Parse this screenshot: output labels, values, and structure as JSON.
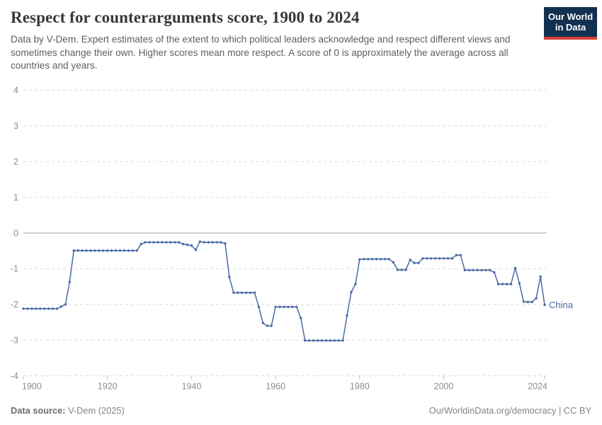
{
  "header": {
    "title": "Respect for counterarguments score, 1900 to 2024",
    "subtitle": "Data by V-Dem. Expert estimates of the extent to which political leaders acknowledge and respect different views and sometimes change their own. Higher scores mean more respect. A score of 0 is approximately the average across all countries and years."
  },
  "logo": {
    "line1": "Our World",
    "line2": "in Data",
    "bg_color": "#12304f",
    "bar_color": "#d8423c"
  },
  "footer": {
    "source_label": "Data source:",
    "source_value": " V-Dem (2025)",
    "right_text": "OurWorldinData.org/democracy | CC BY"
  },
  "chart_data": {
    "type": "line",
    "title": "Respect for counterarguments score, 1900 to 2024",
    "xlabel": "",
    "ylabel": "",
    "xlim": [
      1900,
      2024
    ],
    "ylim": [
      -4,
      4
    ],
    "grid": "dashed-horizontal",
    "legend_position": "end-of-line-label",
    "entity_label": "China",
    "line_color": "#4b6aa5",
    "axis_text_color": "#8d8d8d",
    "gridline_color": "#dcdcdc",
    "zero_line_color": "#a3a3a3",
    "yticks": [
      4,
      3,
      2,
      1,
      0,
      -1,
      -2,
      -3,
      -4
    ],
    "xticks": [
      1900,
      1920,
      1940,
      1960,
      1980,
      2000,
      2024
    ],
    "x": [
      1900,
      1901,
      1902,
      1903,
      1904,
      1905,
      1906,
      1907,
      1908,
      1909,
      1910,
      1911,
      1912,
      1913,
      1914,
      1915,
      1916,
      1917,
      1918,
      1919,
      1920,
      1921,
      1922,
      1923,
      1924,
      1925,
      1926,
      1927,
      1928,
      1929,
      1930,
      1931,
      1932,
      1933,
      1934,
      1935,
      1936,
      1937,
      1938,
      1939,
      1940,
      1941,
      1942,
      1943,
      1944,
      1945,
      1946,
      1947,
      1948,
      1949,
      1950,
      1951,
      1952,
      1953,
      1954,
      1955,
      1956,
      1957,
      1958,
      1959,
      1960,
      1961,
      1962,
      1963,
      1964,
      1965,
      1966,
      1967,
      1968,
      1969,
      1970,
      1971,
      1972,
      1973,
      1974,
      1975,
      1976,
      1977,
      1978,
      1979,
      1980,
      1981,
      1982,
      1983,
      1984,
      1985,
      1986,
      1987,
      1988,
      1989,
      1990,
      1991,
      1992,
      1993,
      1994,
      1995,
      1996,
      1997,
      1998,
      1999,
      2000,
      2001,
      2002,
      2003,
      2004,
      2005,
      2006,
      2007,
      2008,
      2009,
      2010,
      2011,
      2012,
      2013,
      2014,
      2015,
      2016,
      2017,
      2018,
      2019,
      2020,
      2021,
      2022,
      2023,
      2024
    ],
    "series": [
      {
        "name": "China",
        "values": [
          -2.12,
          -2.12,
          -2.12,
          -2.12,
          -2.12,
          -2.12,
          -2.12,
          -2.12,
          -2.12,
          -2.06,
          -2.0,
          -1.37,
          -0.49,
          -0.49,
          -0.49,
          -0.49,
          -0.49,
          -0.49,
          -0.49,
          -0.49,
          -0.49,
          -0.49,
          -0.49,
          -0.49,
          -0.49,
          -0.49,
          -0.49,
          -0.49,
          -0.31,
          -0.26,
          -0.26,
          -0.26,
          -0.26,
          -0.26,
          -0.26,
          -0.26,
          -0.26,
          -0.26,
          -0.31,
          -0.33,
          -0.35,
          -0.47,
          -0.24,
          -0.26,
          -0.26,
          -0.26,
          -0.26,
          -0.26,
          -0.29,
          -1.23,
          -1.67,
          -1.67,
          -1.67,
          -1.67,
          -1.67,
          -1.67,
          -2.07,
          -2.52,
          -2.6,
          -2.6,
          -2.07,
          -2.07,
          -2.07,
          -2.07,
          -2.07,
          -2.07,
          -2.38,
          -3.01,
          -3.01,
          -3.01,
          -3.01,
          -3.01,
          -3.01,
          -3.01,
          -3.01,
          -3.01,
          -3.01,
          -2.31,
          -1.65,
          -1.43,
          -0.74,
          -0.73,
          -0.73,
          -0.73,
          -0.73,
          -0.73,
          -0.73,
          -0.73,
          -0.82,
          -1.03,
          -1.03,
          -1.03,
          -0.75,
          -0.84,
          -0.84,
          -0.71,
          -0.71,
          -0.71,
          -0.71,
          -0.71,
          -0.71,
          -0.71,
          -0.71,
          -0.62,
          -0.62,
          -1.04,
          -1.04,
          -1.04,
          -1.04,
          -1.04,
          -1.04,
          -1.04,
          -1.1,
          -1.43,
          -1.43,
          -1.43,
          -1.43,
          -0.98,
          -1.41,
          -1.92,
          -1.93,
          -1.93,
          -1.83,
          -1.22,
          -2.01
        ]
      }
    ]
  }
}
